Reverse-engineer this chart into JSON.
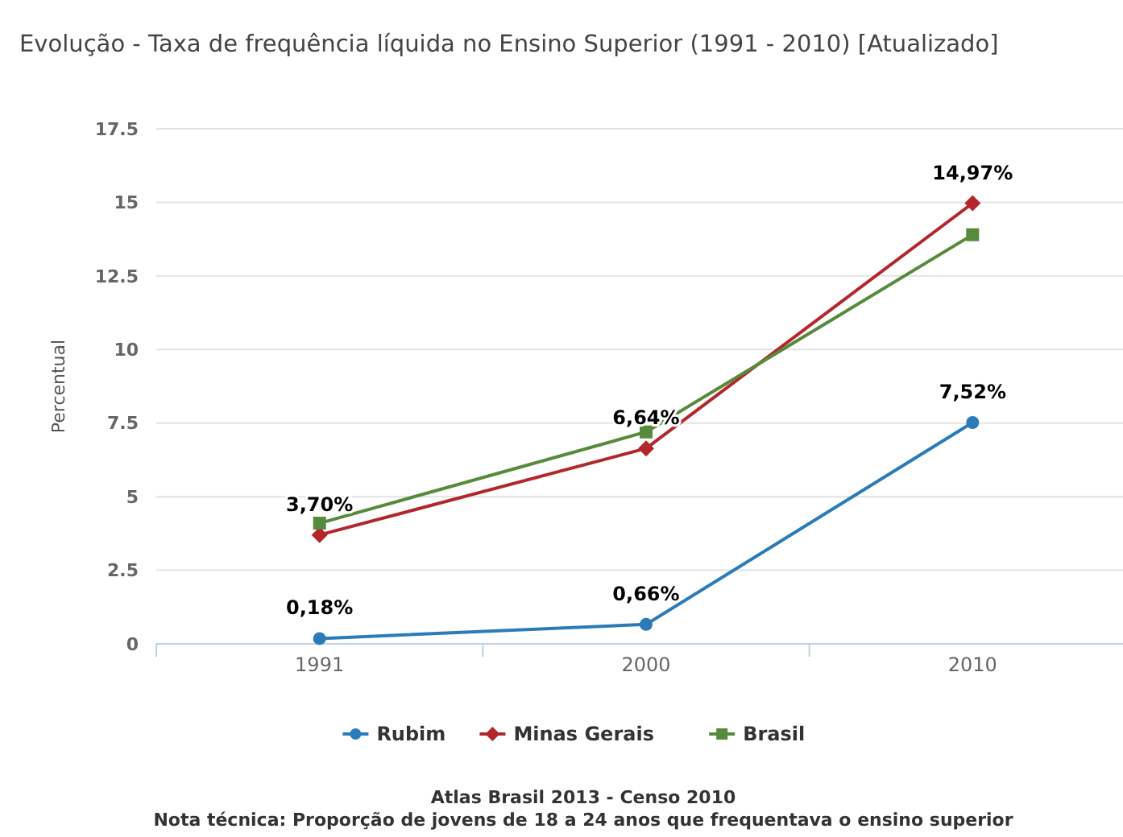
{
  "chart_data": {
    "type": "line",
    "title": "Evolução - Taxa de frequência líquida no Ensino Superior (1991 - 2010) [Atualizado]",
    "ylabel": "Percentual",
    "categories": [
      "1991",
      "2000",
      "2010"
    ],
    "series": [
      {
        "name": "Rubim",
        "color": "#2b7bb9",
        "marker": "circle",
        "values": [
          0.18,
          0.66,
          7.52
        ],
        "value_labels": [
          "0,18%",
          "0,66%",
          "7,52%"
        ]
      },
      {
        "name": "Minas Gerais",
        "color": "#b3262c",
        "marker": "diamond",
        "values": [
          3.7,
          6.64,
          14.97
        ],
        "value_labels": [
          "3,70%",
          "6,64%",
          "14,97%"
        ]
      },
      {
        "name": "Brasil",
        "color": "#578a3c",
        "marker": "square",
        "values": [
          4.1,
          7.2,
          13.9
        ]
      }
    ],
    "ylim": [
      0,
      17.5
    ],
    "yticks": [
      0,
      2.5,
      5,
      7.5,
      10,
      12.5,
      15,
      17.5
    ],
    "grid": "y",
    "legend": "bottom",
    "annotations": [
      "Atlas Brasil 2013 - Censo 2010",
      "Nota técnica: Proporção de jovens de 18 a 24 anos que frequentava o ensino superior"
    ]
  }
}
